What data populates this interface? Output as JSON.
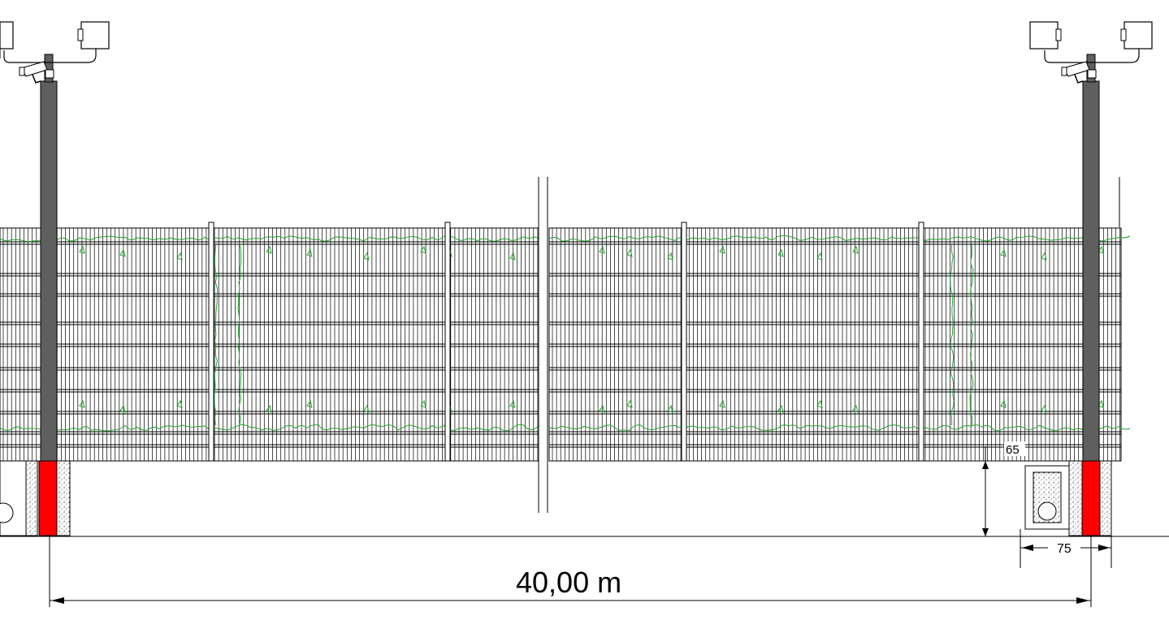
{
  "dimensions": {
    "total_span": "40,00 m",
    "fence_clearance": "65",
    "foundation_width": "75"
  },
  "colors": {
    "line": "#000000",
    "post": "#5f5f5f",
    "post_footing": "#ff0000",
    "vegetation": "#22a52a",
    "background": "#ffffff"
  },
  "icons": {
    "camera": "cctv-camera-icon",
    "floodlight": "floodlight-icon",
    "manhole": "manhole-icon"
  }
}
